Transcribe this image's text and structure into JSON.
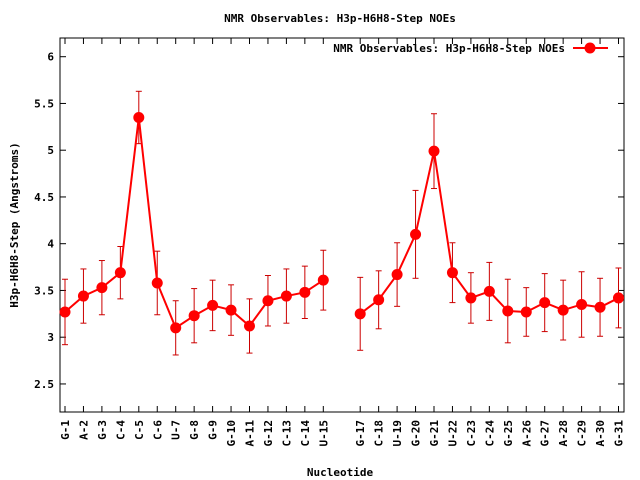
{
  "chart_data": {
    "type": "line",
    "title": "NMR Observables: H3p-H6H8-Step NOEs",
    "xlabel": "Nucleotide",
    "ylabel": "H3p-H6H8-Step (Angstroms)",
    "ylim": [
      2.2,
      6.2
    ],
    "yticks": [
      "2.5",
      "3",
      "3.5",
      "4",
      "4.5",
      "5",
      "5.5",
      "6"
    ],
    "grid": false,
    "legend_position": "top-right",
    "series_color": "#ff0000",
    "error_bar_color": "#cc0000",
    "series": [
      {
        "name": "NMR Observables: H3p-H6H8-Step NOEs",
        "segments": [
          {
            "labels": [
              "G-1",
              "A-2",
              "G-3",
              "C-4",
              "C-5",
              "C-6",
              "U-7",
              "G-8",
              "G-9",
              "G-10",
              "A-11",
              "G-12",
              "C-13",
              "C-14",
              "U-15"
            ],
            "values": [
              3.27,
              3.44,
              3.53,
              3.69,
              5.35,
              3.58,
              3.1,
              3.23,
              3.34,
              3.29,
              3.12,
              3.39,
              3.44,
              3.48,
              3.61
            ],
            "errors": [
              0.35,
              0.29,
              0.29,
              0.28,
              0.28,
              0.34,
              0.29,
              0.29,
              0.27,
              0.27,
              0.29,
              0.27,
              0.29,
              0.28,
              0.32
            ]
          },
          {
            "labels": [
              "G-17",
              "C-18",
              "U-19",
              "G-20",
              "G-21",
              "U-22",
              "C-23",
              "C-24",
              "G-25",
              "A-26",
              "G-27",
              "A-28",
              "C-29",
              "A-30",
              "G-31"
            ],
            "values": [
              3.25,
              3.4,
              3.67,
              4.1,
              4.99,
              3.69,
              3.42,
              3.49,
              3.28,
              3.27,
              3.37,
              3.29,
              3.35,
              3.32,
              3.42
            ],
            "errors": [
              0.39,
              0.31,
              0.34,
              0.47,
              0.4,
              0.32,
              0.27,
              0.31,
              0.34,
              0.26,
              0.31,
              0.32,
              0.35,
              0.31,
              0.32
            ]
          }
        ]
      }
    ]
  }
}
